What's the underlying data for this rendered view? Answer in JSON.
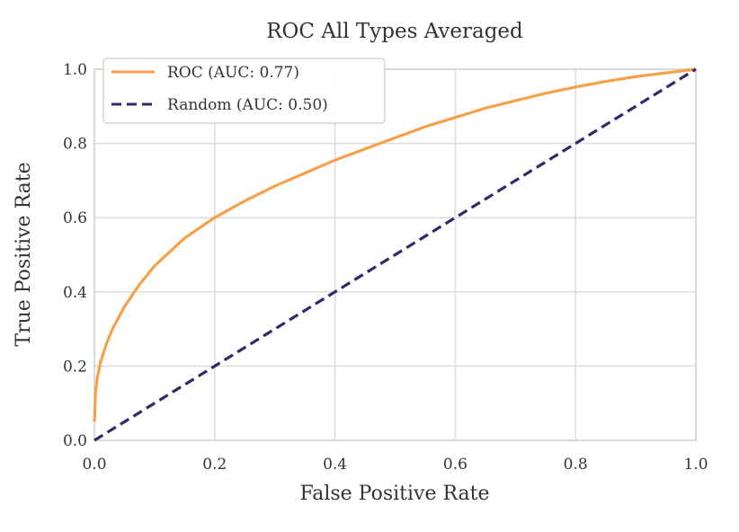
{
  "chart_data": {
    "type": "line",
    "title": "ROC All Types Averaged",
    "xlabel": "False Positive Rate",
    "ylabel": "True Positive Rate",
    "xlim": [
      0.0,
      1.0
    ],
    "ylim": [
      0.0,
      1.0
    ],
    "x_ticks": [
      "0.0",
      "0.2",
      "0.4",
      "0.6",
      "0.8",
      "1.0"
    ],
    "y_ticks": [
      "0.0",
      "0.2",
      "0.4",
      "0.6",
      "0.8",
      "1.0"
    ],
    "grid": true,
    "legend_position": "top-left",
    "series": [
      {
        "name": "ROC (AUC: 0.77)",
        "style": "solid",
        "color": "#f5a04a",
        "x": [
          0.0,
          0.002,
          0.005,
          0.01,
          0.02,
          0.03,
          0.05,
          0.075,
          0.1,
          0.15,
          0.2,
          0.25,
          0.3,
          0.35,
          0.4,
          0.45,
          0.5,
          0.55,
          0.6,
          0.65,
          0.7,
          0.75,
          0.8,
          0.85,
          0.9,
          0.95,
          1.0
        ],
        "y": [
          0.05,
          0.13,
          0.17,
          0.21,
          0.26,
          0.3,
          0.36,
          0.42,
          0.47,
          0.545,
          0.6,
          0.645,
          0.685,
          0.72,
          0.755,
          0.785,
          0.815,
          0.845,
          0.87,
          0.895,
          0.915,
          0.935,
          0.952,
          0.967,
          0.98,
          0.99,
          1.0
        ]
      },
      {
        "name": "Random (AUC: 0.50)",
        "style": "dashed",
        "color": "#2b2d6b",
        "x": [
          0.0,
          1.0
        ],
        "y": [
          0.0,
          1.0
        ]
      }
    ]
  }
}
